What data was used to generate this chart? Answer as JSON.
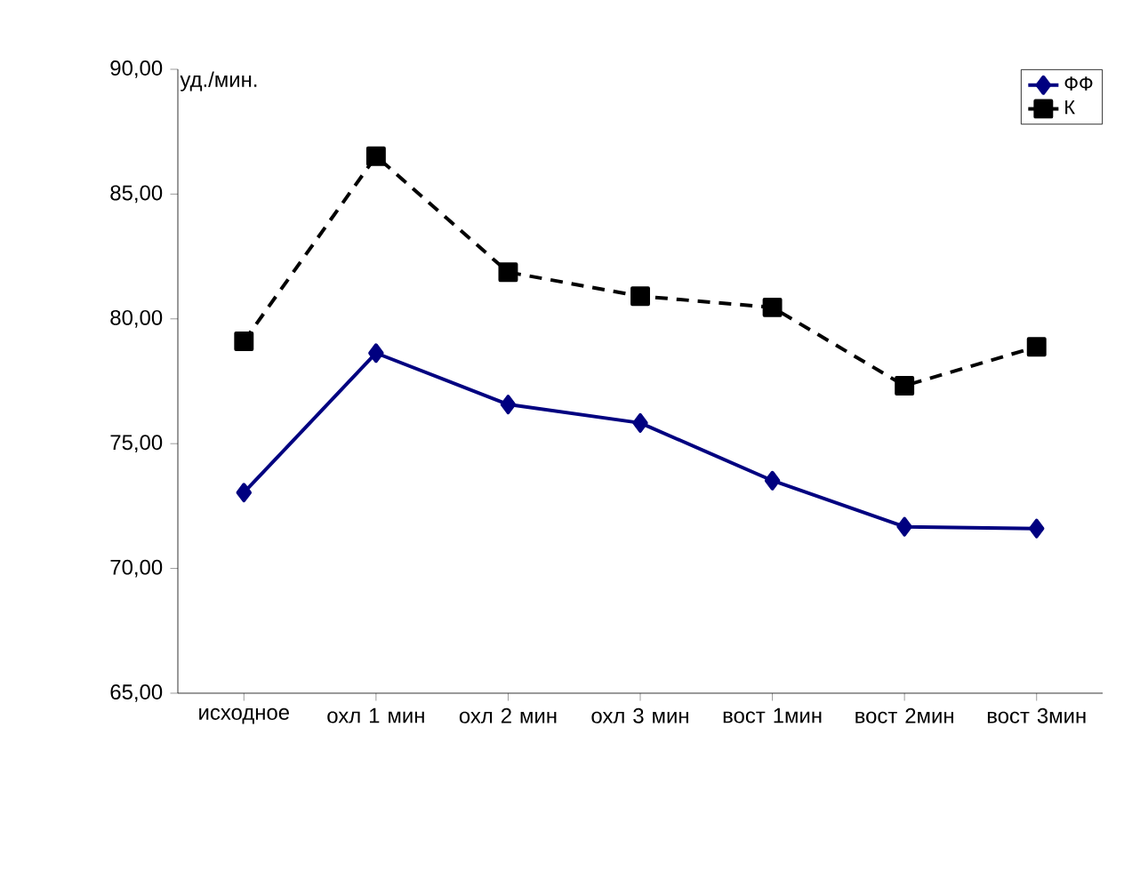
{
  "chart_data": {
    "type": "line",
    "ylabel": "уд./мин.",
    "categories": [
      "исходное",
      "охл 1 мин",
      "охл 2 мин",
      "охл 3 мин",
      "вост 1мин",
      "вост 2мин",
      "вост 3мин"
    ],
    "series": [
      {
        "name": "ФФ",
        "color": "#000080",
        "marker": "diamond",
        "line_style": "solid",
        "values": [
          73.04,
          78.63,
          76.57,
          75.83,
          73.52,
          71.67,
          71.6
        ]
      },
      {
        "name": "К",
        "color": "#000000",
        "marker": "square",
        "line_style": "dashed",
        "values": [
          79.1,
          86.52,
          81.87,
          80.91,
          80.46,
          77.32,
          78.88
        ]
      }
    ],
    "ylim": [
      65,
      90
    ],
    "yticks": [
      {
        "value": 65,
        "label": "65,00"
      },
      {
        "value": 70,
        "label": "70,00"
      },
      {
        "value": 75,
        "label": "75,00"
      },
      {
        "value": 80,
        "label": "80,00"
      },
      {
        "value": 85,
        "label": "85,00"
      },
      {
        "value": 90,
        "label": "90,00"
      }
    ],
    "grid": false,
    "legend": "top right"
  }
}
